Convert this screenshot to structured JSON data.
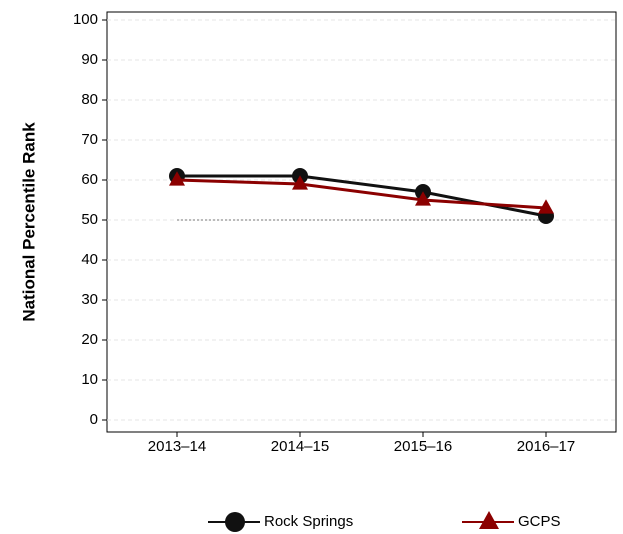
{
  "chart_data": {
    "type": "line",
    "y_label": "National Percentile Rank",
    "categories": [
      "2013–14",
      "2014–15",
      "2015–16",
      "2016–17"
    ],
    "series": [
      {
        "name": "Rock Springs",
        "color": "#111111",
        "marker": "circle",
        "values": [
          61,
          61,
          57,
          51
        ]
      },
      {
        "name": "GCPS",
        "color": "#8b0000",
        "marker": "triangle",
        "values": [
          60,
          59,
          55,
          53
        ]
      }
    ],
    "reference_line": 50,
    "ylim": [
      -3,
      102
    ],
    "yticks": [
      0,
      10,
      20,
      30,
      40,
      50,
      60,
      70,
      80,
      90,
      100
    ],
    "grid": true
  }
}
